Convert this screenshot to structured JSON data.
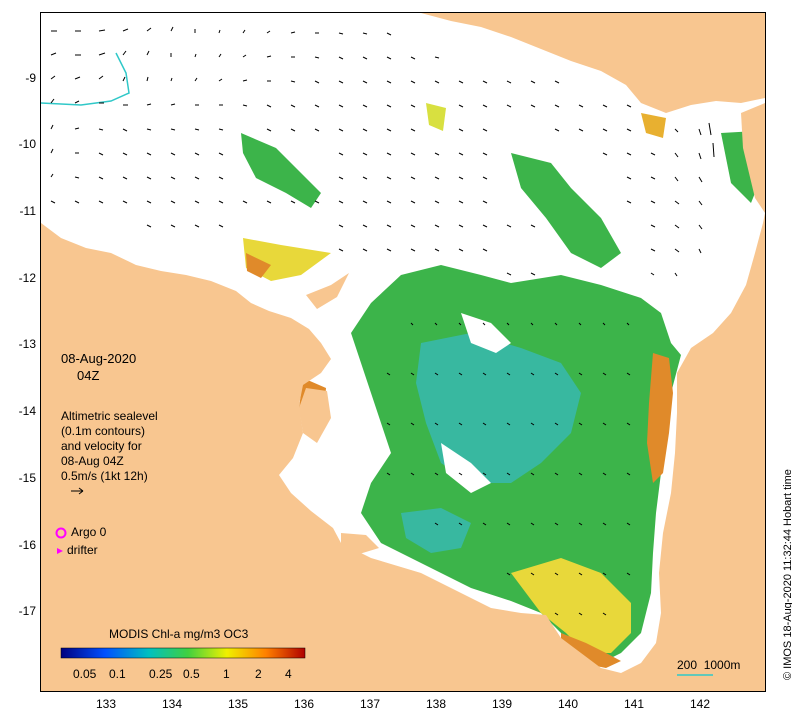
{
  "map": {
    "date": "08-Aug-2020",
    "hour": "04Z",
    "legend_lines": [
      "Altimetric sealevel",
      "(0.1m contours)",
      "and velocity for",
      "08-Aug 04Z",
      "0.5m/s (1kt 12h)"
    ],
    "argo_label": "Argo 0",
    "drifter_label": "drifter",
    "colorbar_title": "MODIS Chl-a mg/m3 OC3",
    "colorbar_ticks": [
      "0.05",
      "0.1",
      "0.25",
      "0.5",
      "1",
      "2",
      "4"
    ],
    "scale_label": "200  1000m",
    "credit": "© IMOS 18-Aug-2020 11:32:44 Hobart time",
    "y_ticks": [
      "-9",
      "-10",
      "-11",
      "-12",
      "-13",
      "-14",
      "-15",
      "-16",
      "-17"
    ],
    "x_ticks": [
      "133",
      "134",
      "135",
      "136",
      "137",
      "138",
      "139",
      "140",
      "141",
      "142"
    ],
    "colors": {
      "land": "#f8c690",
      "ocean": "#ffffff",
      "green": "#3cb44a",
      "teal": "#38b8a0",
      "yellow": "#e8d83a",
      "orange": "#e08a2a",
      "colorbar": [
        "#000080",
        "#0050ff",
        "#00c0c0",
        "#40d040",
        "#f0f000",
        "#ff8000",
        "#b00000"
      ]
    }
  }
}
